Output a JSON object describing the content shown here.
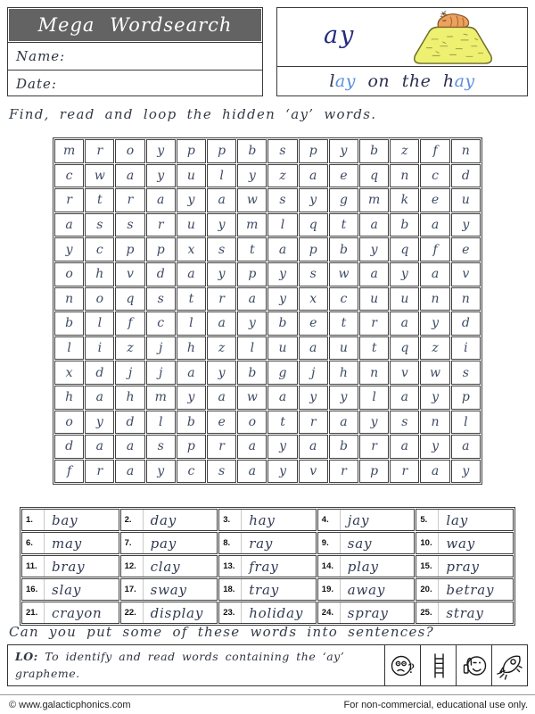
{
  "header": {
    "title": "Mega Wordsearch",
    "name_label": "Name:",
    "date_label": "Date:"
  },
  "phoneme_box": {
    "grapheme": "ay",
    "image": "cat-sleeping-on-haystack",
    "caption": "lay on the hay",
    "caption_parts": [
      {
        "text": "l",
        "tone": "dark"
      },
      {
        "text": "ay",
        "tone": "blue"
      },
      {
        "text": " on the h",
        "tone": "dark"
      },
      {
        "text": "ay",
        "tone": "blue"
      }
    ]
  },
  "instruction": "Find, read and loop the hidden ‘ay’ words.",
  "grid": {
    "rows": [
      "mroyppbspybzfn",
      "cwayulyzaeqncd",
      "rtrayawsygmkeu",
      "assruymlqtabay",
      "ycppxstapbyqfe",
      "ohvdaypyswayav",
      "noqstrayxcuunn",
      "blfclaybetrayd",
      "lizjhzluautqzi",
      "xdjjaybgjhnvws",
      "hahmyawayylayp",
      "oydlbeotraysnl",
      "daasprayabraya",
      "fraycsayvrpray"
    ]
  },
  "word_list": [
    {
      "n": "1.",
      "w": "bay"
    },
    {
      "n": "2.",
      "w": "day"
    },
    {
      "n": "3.",
      "w": "hay"
    },
    {
      "n": "4.",
      "w": "jay"
    },
    {
      "n": "5.",
      "w": "lay"
    },
    {
      "n": "6.",
      "w": "may"
    },
    {
      "n": "7.",
      "w": "pay"
    },
    {
      "n": "8.",
      "w": "ray"
    },
    {
      "n": "9.",
      "w": "say"
    },
    {
      "n": "10.",
      "w": "way"
    },
    {
      "n": "11.",
      "w": "bray"
    },
    {
      "n": "12.",
      "w": "clay"
    },
    {
      "n": "13.",
      "w": "fray"
    },
    {
      "n": "14.",
      "w": "play"
    },
    {
      "n": "15.",
      "w": "pray"
    },
    {
      "n": "16.",
      "w": "slay"
    },
    {
      "n": "17.",
      "w": "sway"
    },
    {
      "n": "18.",
      "w": "tray"
    },
    {
      "n": "19.",
      "w": "away"
    },
    {
      "n": "20.",
      "w": "betray"
    },
    {
      "n": "21.",
      "w": "crayon"
    },
    {
      "n": "22.",
      "w": "display"
    },
    {
      "n": "23.",
      "w": "holiday"
    },
    {
      "n": "24.",
      "w": "spray"
    },
    {
      "n": "25.",
      "w": "stray"
    }
  ],
  "sentence_prompt": "Can you put some of these words into sentences?",
  "lo_box": {
    "label": "LO:",
    "text": "To identify and read words containing the ‘ay’ grapheme.",
    "icons": [
      "thinking-face-icon",
      "ladder-icon",
      "thumbs-up-icon",
      "rocket-icon"
    ]
  },
  "footer": {
    "left": "© www.galacticphonics.com",
    "right": "For non-commercial, educational use only."
  },
  "colors": {
    "title_bar_bg": "#636363",
    "grapheme_navy": "#232a7d",
    "caption_dark": "#2b3150",
    "caption_blue": "#5b8de0",
    "grid_letter": "#3e4a63",
    "haystack_yellow": "#edf071",
    "cat_orange": "#eaa25e"
  }
}
